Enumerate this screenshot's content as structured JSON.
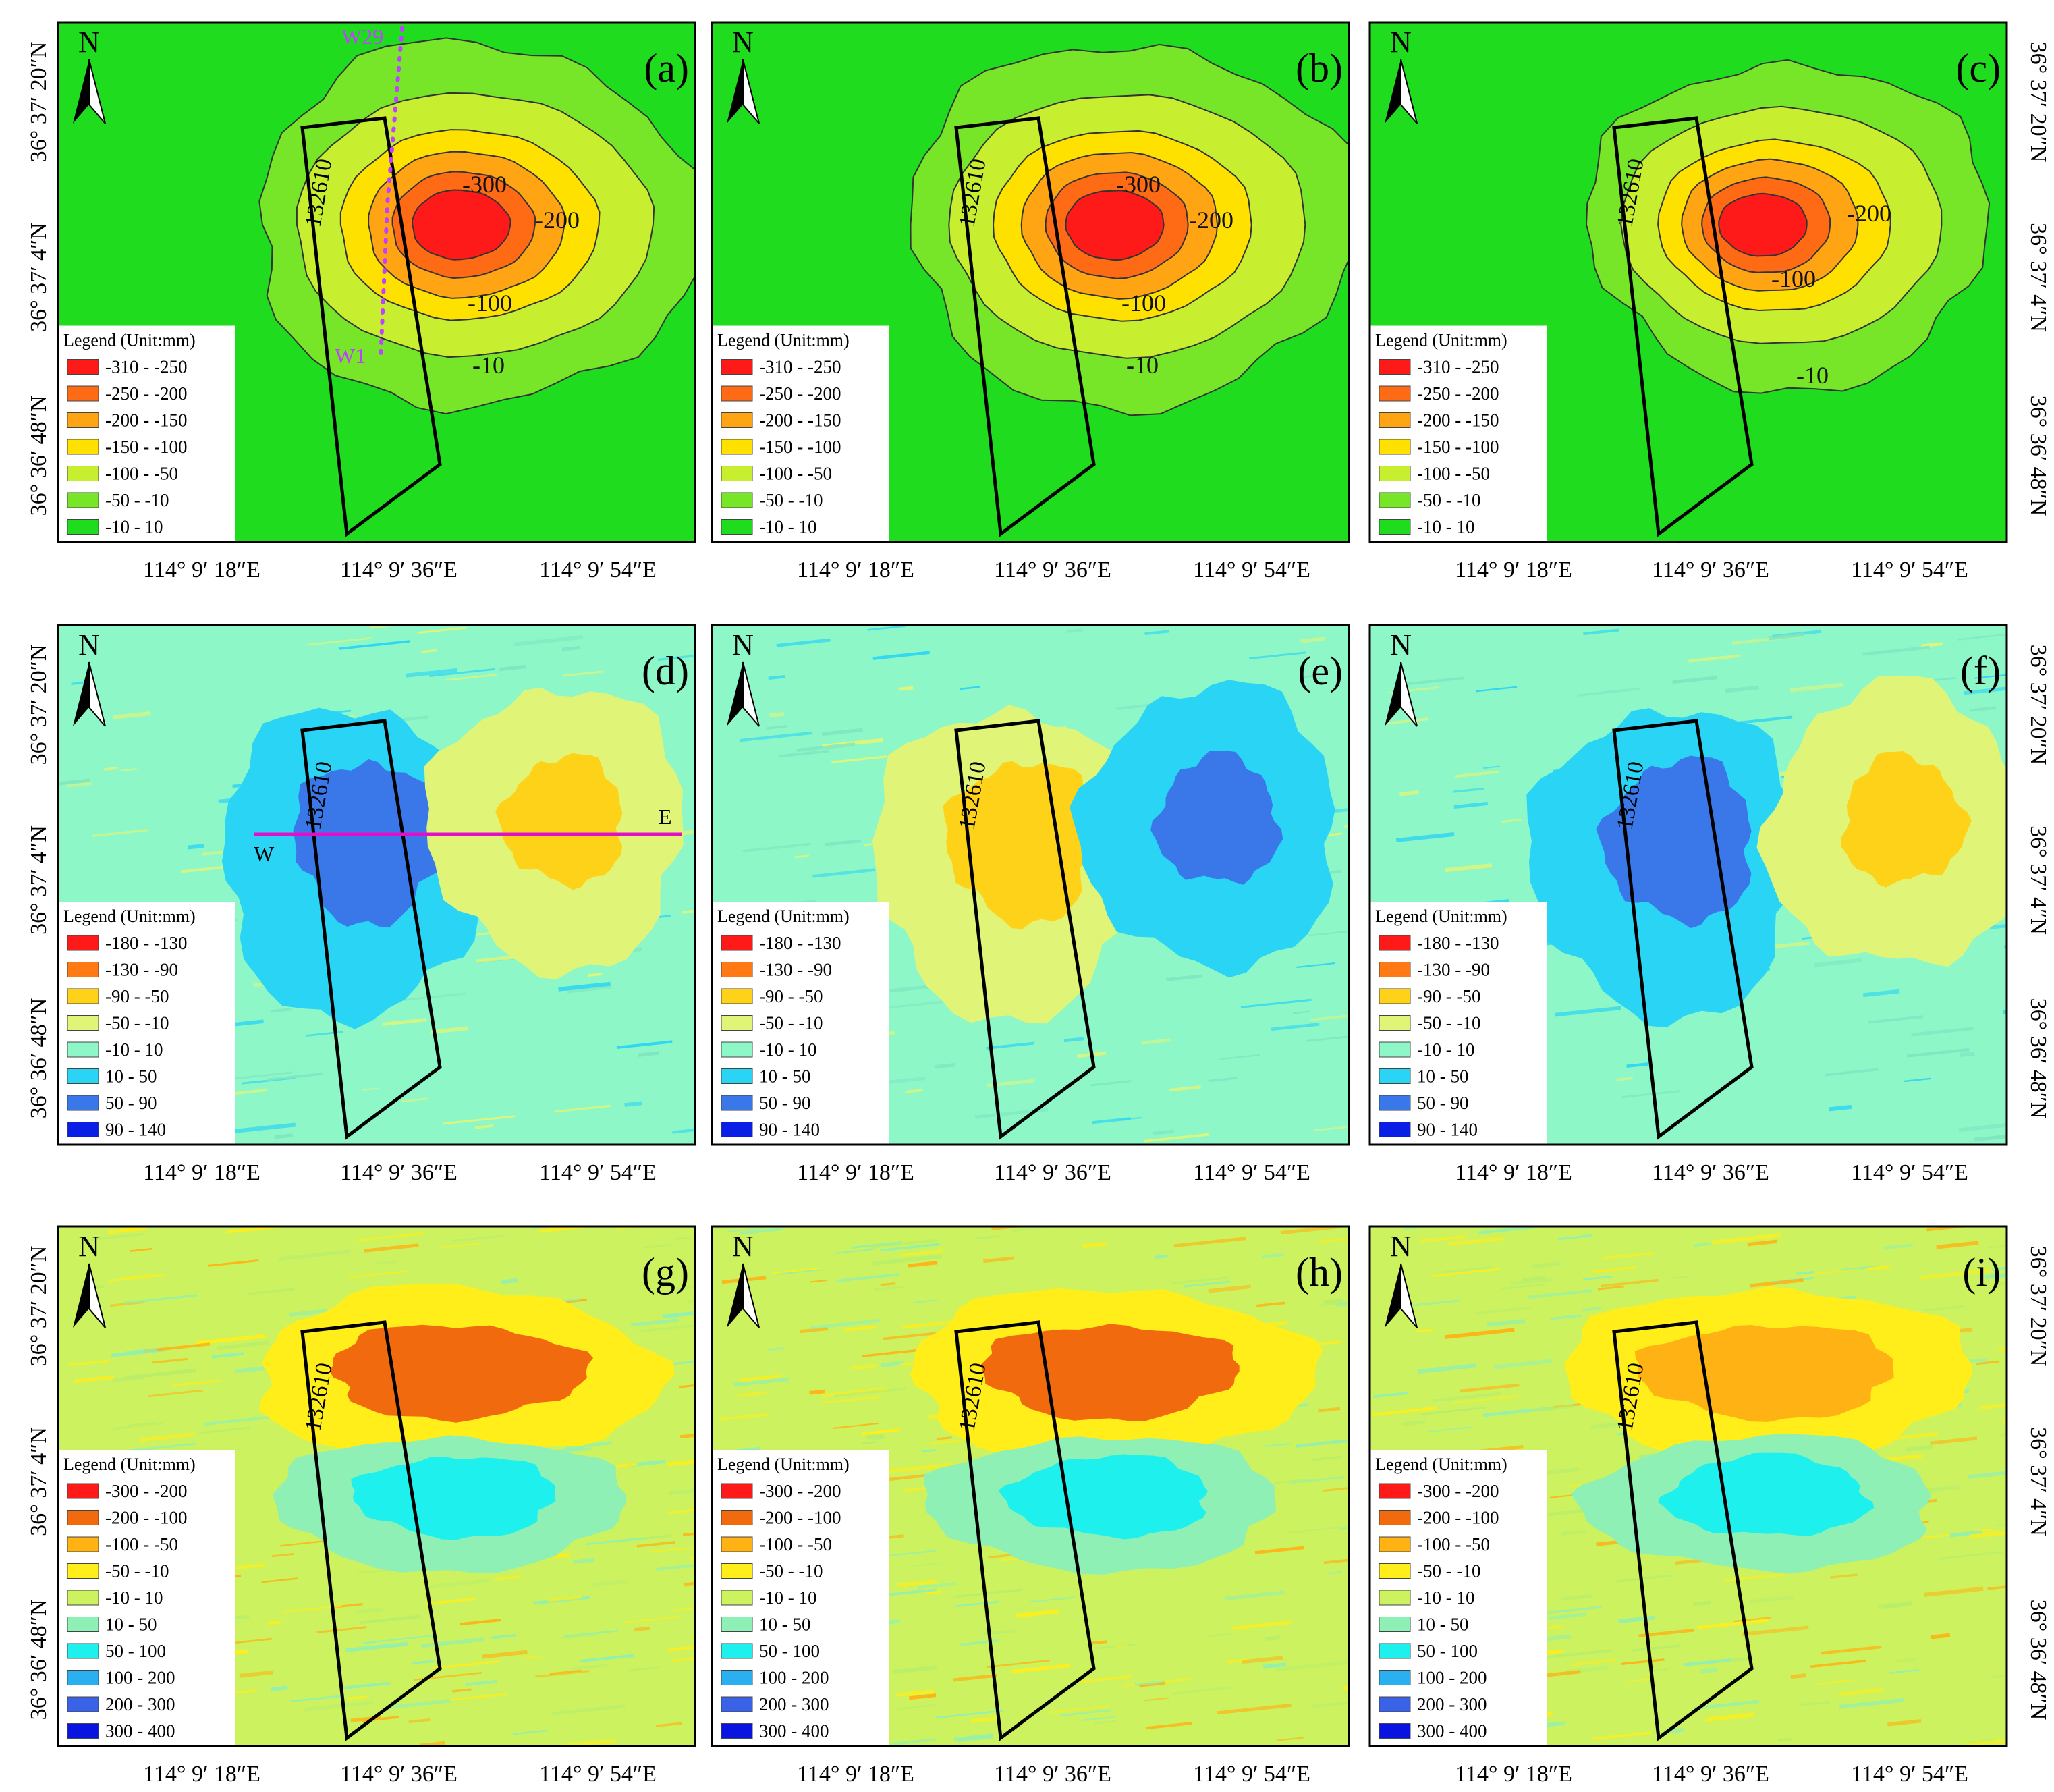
{
  "figure": {
    "north_label": "N",
    "panel_id": "132610",
    "legend_title": "Legend (Unit:mm)",
    "lon_ticks": [
      "114° 9′ 18″E",
      "114° 9′ 36″E",
      "114° 9′ 54″E"
    ],
    "lat_ticks_left": [
      "36° 37′ 20″N",
      "36° 37′ 4″N",
      "36° 36′ 48″N"
    ],
    "lat_ticks_right": [
      "36° 37′ 20″N",
      "36° 37′ 4″N",
      "36° 36′ 48″N"
    ]
  },
  "rows": [
    {
      "kind": "subsidence",
      "bg": "#1fdc1f",
      "legend": [
        {
          "label": "-310 - -250",
          "color": "#ff1a1a"
        },
        {
          "label": "-250 - -200",
          "color": "#ff6a14"
        },
        {
          "label": "-200 - -150",
          "color": "#ffa514"
        },
        {
          "label": "-150 - -100",
          "color": "#ffe100"
        },
        {
          "label": "-100 - -50",
          "color": "#c8ee30"
        },
        {
          "label": "-50 - -10",
          "color": "#78e628"
        },
        {
          "label": "-10 - 10",
          "color": "#1fdc1f"
        }
      ],
      "panels": [
        {
          "letter": "(a)",
          "contours": [
            "-300",
            "-200",
            "-100",
            "-10"
          ],
          "profile": {
            "start": "W29",
            "end": "W1"
          }
        },
        {
          "letter": "(b)",
          "contours": [
            "-300",
            "-200",
            "-100",
            "-10"
          ]
        },
        {
          "letter": "(c)",
          "contours": [
            "-200",
            "-100",
            "-10"
          ]
        }
      ]
    },
    {
      "kind": "horizontal",
      "bg": "#8ef7c8",
      "legend": [
        {
          "label": "-180 - -130",
          "color": "#ff1a1a"
        },
        {
          "label": "-130 - -90",
          "color": "#ff7a14"
        },
        {
          "label": "-90 - -50",
          "color": "#ffd21a"
        },
        {
          "label": "-50 - -10",
          "color": "#e0f578"
        },
        {
          "label": "-10 - 10",
          "color": "#8ef7c8"
        },
        {
          "label": "10 - 50",
          "color": "#2ad4f5"
        },
        {
          "label": "50 - 90",
          "color": "#3a78ea"
        },
        {
          "label": "90 - 140",
          "color": "#0a1ee6"
        }
      ],
      "panels": [
        {
          "letter": "(d)",
          "profile": {
            "start": "W",
            "end": "E"
          }
        },
        {
          "letter": "(e)"
        },
        {
          "letter": "(f)"
        }
      ]
    },
    {
      "kind": "gradient",
      "bg": "#ccf260",
      "legend": [
        {
          "label": "-300 - -200",
          "color": "#ff1a1a"
        },
        {
          "label": "-200 - -100",
          "color": "#f26a0e"
        },
        {
          "label": "-100 - -50",
          "color": "#ffb214"
        },
        {
          "label": "-50 - -10",
          "color": "#ffee1a"
        },
        {
          "label": "-10 - 10",
          "color": "#ccf260"
        },
        {
          "label": "10 - 50",
          "color": "#8ef0b4"
        },
        {
          "label": "50 - 100",
          "color": "#1ef0ee"
        },
        {
          "label": "100 - 200",
          "color": "#2ab0f0"
        },
        {
          "label": "200 - 300",
          "color": "#3a62e6"
        },
        {
          "label": "300 - 400",
          "color": "#0a14e0"
        }
      ],
      "panels": [
        {
          "letter": "(g)"
        },
        {
          "letter": "(h)"
        },
        {
          "letter": "(i)"
        }
      ]
    }
  ]
}
